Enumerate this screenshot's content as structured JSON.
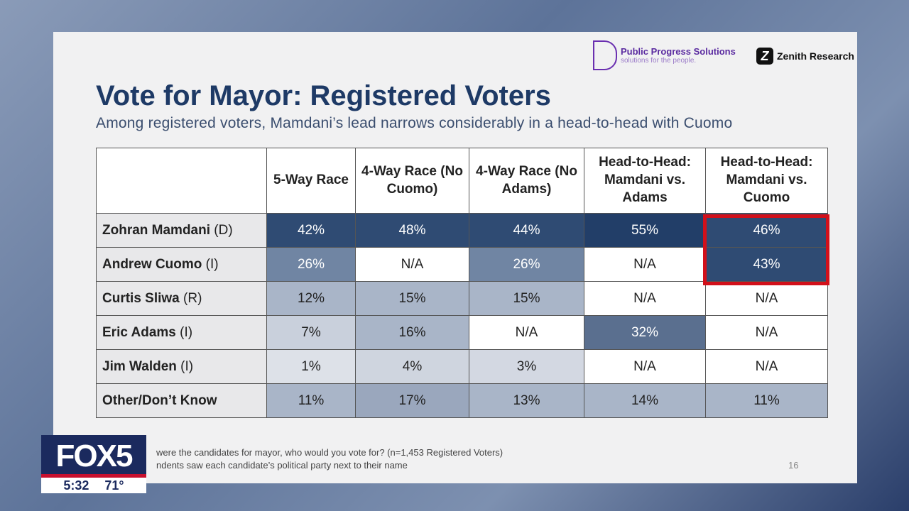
{
  "logos": {
    "ppsName": "Public Progress Solutions",
    "ppsTag": "solutions for the people.",
    "zenith": "Zenith Research"
  },
  "title": "Vote for Mayor: Registered Voters",
  "subtitle": "Among registered voters, Mamdani’s lead narrows considerably in a head-to-head with Cuomo",
  "columns": [
    "5-Way Race",
    "4-Way Race (No Cuomo)",
    "4-Way Race (No Adams)",
    "Head-to-Head: Mamdani vs. Adams",
    "Head-to-Head: Mamdani vs. Cuomo"
  ],
  "rows": [
    {
      "name": "Zohran Mamdani",
      "party": "(D)",
      "values": [
        "42%",
        "48%",
        "44%",
        "55%",
        "46%"
      ],
      "colors": [
        "#2f4b73",
        "#2f4b73",
        "#2f4b73",
        "#223e68",
        "#2f4b73"
      ]
    },
    {
      "name": "Andrew Cuomo",
      "party": "(I)",
      "values": [
        "26%",
        "N/A",
        "26%",
        "N/A",
        "43%"
      ],
      "colors": [
        "#7085a3",
        "#ffffff",
        "#7085a3",
        "#ffffff",
        "#2f4b73"
      ]
    },
    {
      "name": "Curtis Sliwa",
      "party": "(R)",
      "values": [
        "12%",
        "15%",
        "15%",
        "N/A",
        "N/A"
      ],
      "colors": [
        "#a9b5c8",
        "#a9b5c8",
        "#a9b5c8",
        "#ffffff",
        "#ffffff"
      ]
    },
    {
      "name": "Eric Adams",
      "party": "(I)",
      "values": [
        "7%",
        "16%",
        "N/A",
        "32%",
        "N/A"
      ],
      "colors": [
        "#c9d0dc",
        "#a9b5c8",
        "#ffffff",
        "#5a6f8f",
        "#ffffff"
      ]
    },
    {
      "name": "Jim Walden",
      "party": "(I)",
      "values": [
        "1%",
        "4%",
        "3%",
        "N/A",
        "N/A"
      ],
      "colors": [
        "#dde1e8",
        "#cfd5df",
        "#d3d8e2",
        "#ffffff",
        "#ffffff"
      ]
    },
    {
      "name": "Other/Don’t Know",
      "party": "",
      "values": [
        "11%",
        "17%",
        "13%",
        "14%",
        "11%"
      ],
      "colors": [
        "#a9b5c8",
        "#9aa7bd",
        "#a9b5c8",
        "#a9b5c8",
        "#a9b5c8"
      ]
    }
  ],
  "footnotes": [
    "were the candidates for mayor, who would you vote for? (n=1,453 Registered Voters)",
    "ndents saw each candidate’s political party next to their name"
  ],
  "page": "16",
  "fox": {
    "logo": "FOX5",
    "time": "5:32",
    "temp": "71°"
  }
}
